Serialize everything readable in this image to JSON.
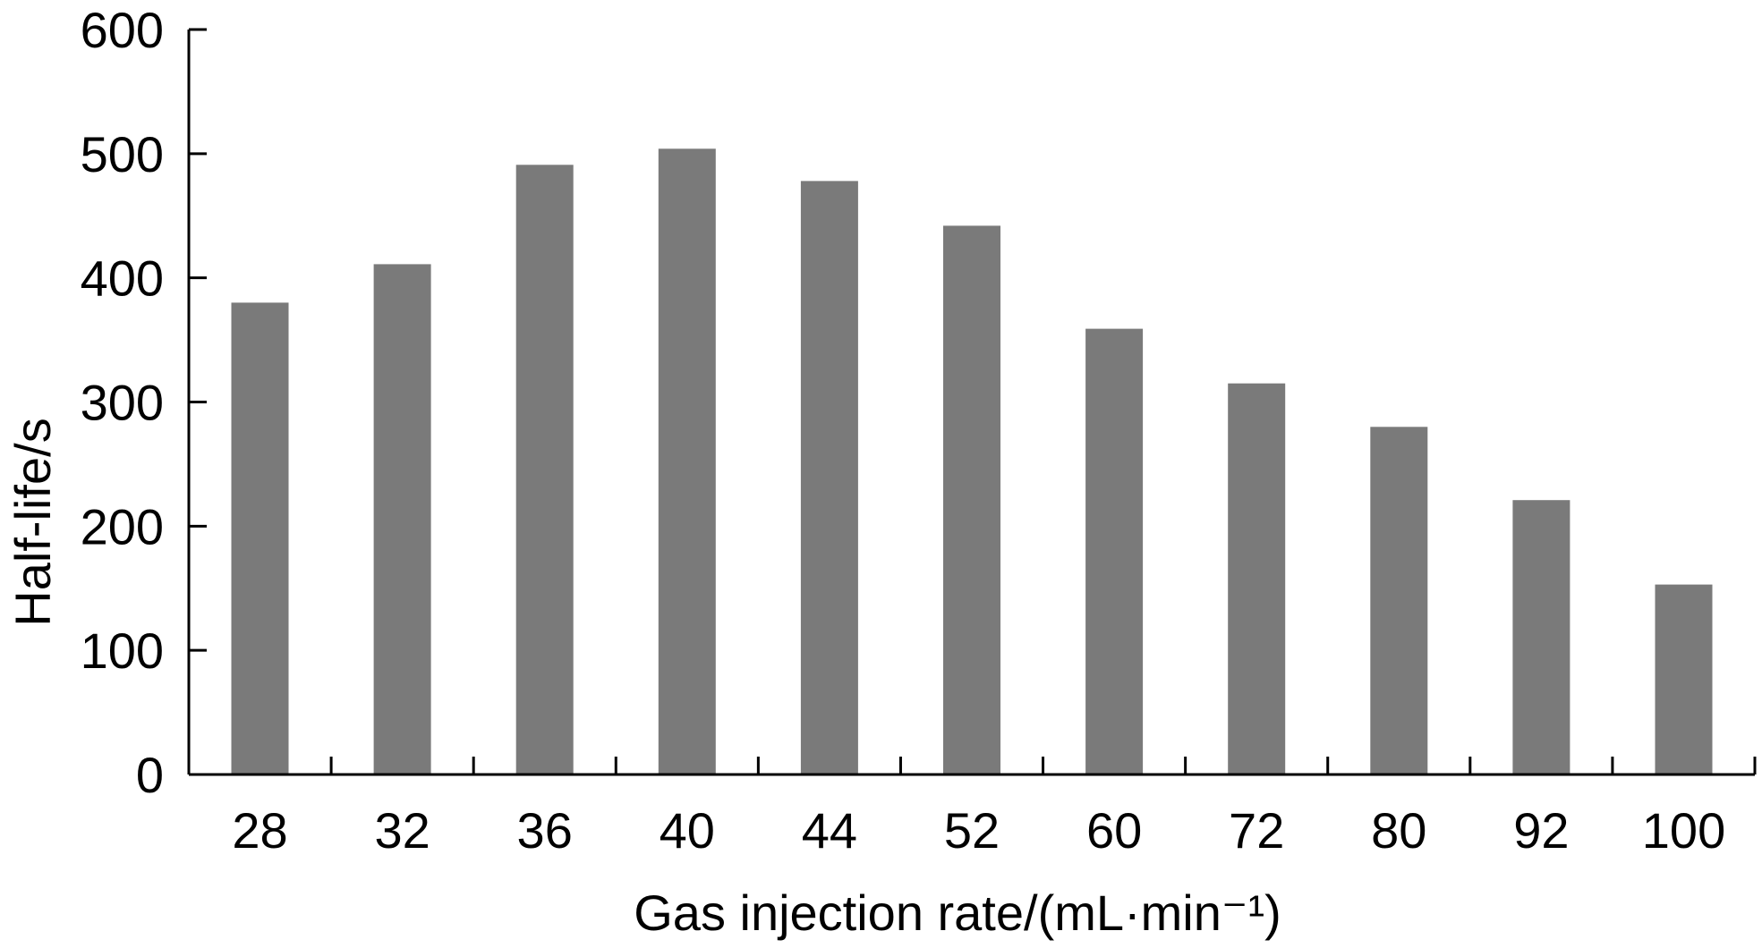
{
  "chart_data": {
    "type": "bar",
    "title": "",
    "xlabel": "Gas injection rate/(mL·min⁻¹)",
    "ylabel": "Half-life/s",
    "categories": [
      "28",
      "32",
      "36",
      "40",
      "44",
      "52",
      "60",
      "72",
      "80",
      "92",
      "100"
    ],
    "values": [
      380,
      411,
      491,
      504,
      478,
      442,
      359,
      315,
      280,
      221,
      153
    ],
    "ylim": [
      0,
      600
    ],
    "yticks": [
      0,
      100,
      200,
      300,
      400,
      500,
      600
    ],
    "grid": false,
    "legend": "none",
    "colors": {
      "bar": "#7a7a7a",
      "axis": "#000000",
      "text": "#000000"
    }
  }
}
